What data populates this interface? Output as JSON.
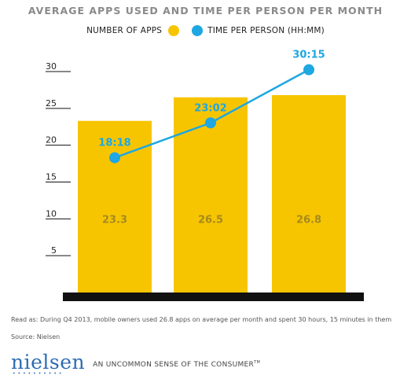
{
  "chart_data": {
    "type": "bar",
    "title": "AVERAGE APPS USED AND TIME PER PERSON PER MONTH",
    "categories": [
      "",
      "",
      ""
    ],
    "ylim": [
      0,
      30
    ],
    "yticks": [
      5,
      10,
      15,
      20,
      25,
      30
    ],
    "series": [
      {
        "name": "NUMBER OF APPS",
        "type": "bar",
        "color": "#f7c500",
        "values": [
          23.3,
          26.5,
          26.8
        ],
        "labels": [
          "23.3",
          "26.5",
          "26.8"
        ]
      },
      {
        "name": "TIME PER PERSON  (HH:MM)",
        "type": "line",
        "color": "#1ea7e1",
        "values": [
          18.3,
          23.0333,
          30.25
        ],
        "labels": [
          "18:18",
          "23:02",
          "30:15"
        ]
      }
    ],
    "legend": "top",
    "grid": false
  },
  "notes": {
    "read_as": "Read as: During Q4 2013, mobile owners used 26.8 apps on average per month and spent 30 hours, 15 minutes in them",
    "source": "Source: Nielsen"
  },
  "brand": {
    "logo": "nielsen",
    "tagline": "AN UNCOMMON SENSE OF THE CONSUMER",
    "tm": "TM"
  },
  "colors": {
    "bar": "#f7c500",
    "line": "#1ea7e1",
    "bar_label": "#a58a1e",
    "axis_base": "#111111",
    "brand_blue": "#2b6cb3"
  }
}
